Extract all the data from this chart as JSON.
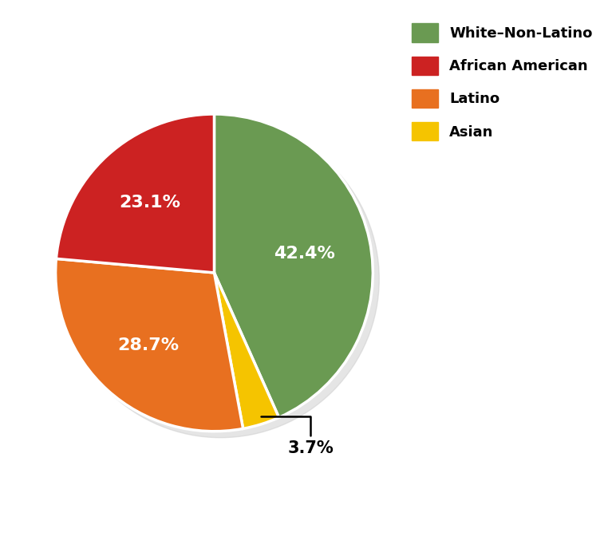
{
  "labels": [
    "White-Non-Latino",
    "Asian",
    "Latino",
    "African American"
  ],
  "values": [
    42.4,
    3.7,
    28.7,
    23.1
  ],
  "colors": [
    "#6a9a52",
    "#f5c400",
    "#e87020",
    "#cc2222"
  ],
  "legend_labels": [
    "White–Non-Latino",
    "African American",
    "Latino",
    "Asian"
  ],
  "legend_colors": [
    "#6a9a52",
    "#cc2222",
    "#e87020",
    "#f5c400"
  ],
  "pie_edge_color": "white",
  "pie_linewidth": 2.5,
  "background_color": "#ffffff",
  "startangle": 90,
  "label_texts": [
    "42.4%",
    "3.7%",
    "28.7%",
    "23.1%"
  ],
  "label_colors": [
    "white",
    "black",
    "white",
    "white"
  ],
  "label_r": [
    0.58,
    1.28,
    0.62,
    0.6
  ],
  "external_label_idx": 1,
  "annotation_text": "3.7%",
  "figsize": [
    7.67,
    6.77
  ],
  "dpi": 100
}
